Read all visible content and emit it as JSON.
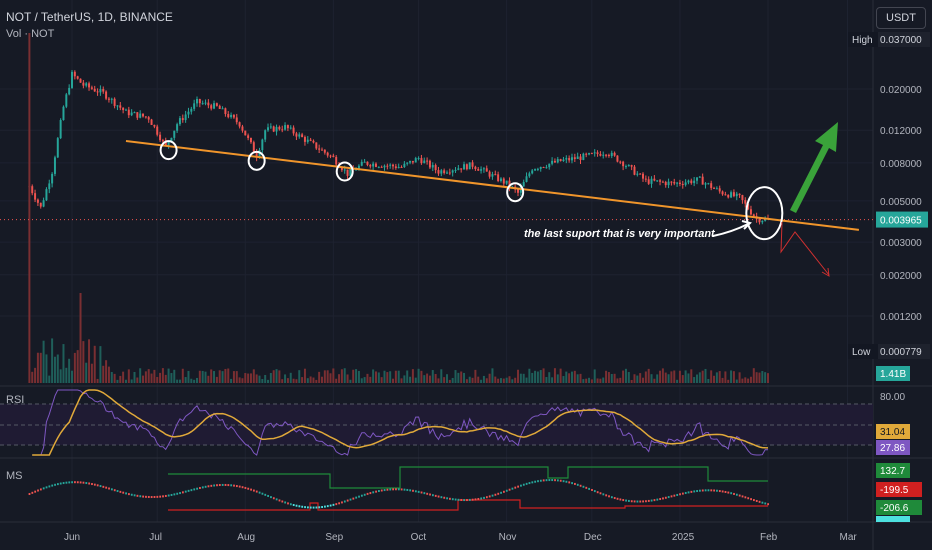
{
  "header": {
    "symbol_line": "NOT / TetherUS, 1D, BINANCE",
    "volume_label": "Vol · NOT",
    "currency_button": "USDT"
  },
  "colors": {
    "background": "#161a25",
    "up": "#26a69a",
    "down": "#ef5350",
    "trendline": "#f0952b",
    "rsi_line": "#7e57c2",
    "rsi_ma": "#e0a93a",
    "arrow_up": "#3aa33a",
    "arrow_down": "#d03030",
    "ms_green": "#1f8a3a",
    "ms_red": "#d02020",
    "ms_cyan": "#4de0e0"
  },
  "chart_data": [
    {
      "type": "candlestick",
      "title": "NOT / TetherUS, 1D, BINANCE",
      "y_scale": "log",
      "y_ticks": [
        "0.020000",
        "0.012000",
        "0.008000",
        "0.005000",
        "0.003000",
        "0.002000",
        "0.001200"
      ],
      "y_tick_values": [
        0.02,
        0.012,
        0.008,
        0.005,
        0.003,
        0.002,
        0.0012
      ],
      "x_ticks": [
        "Jun",
        "Jul",
        "Aug",
        "Sep",
        "Oct",
        "Nov",
        "Dec",
        "2025",
        "Feb",
        "Mar"
      ],
      "high_label": "High",
      "high_value": "0.037000",
      "low_label": "Low",
      "low_value": "0.000779",
      "last_price": "0.003965",
      "volume_badge": "1.41B",
      "annotation": "the last suport that is very important",
      "close_series": [
        {
          "date": "May 17",
          "value": 0.006
        },
        {
          "date": "May 21",
          "value": 0.0046
        },
        {
          "date": "May 25",
          "value": 0.0072
        },
        {
          "date": "May 29",
          "value": 0.016
        },
        {
          "date": "Jun 01",
          "value": 0.024
        },
        {
          "date": "Jun 05",
          "value": 0.021
        },
        {
          "date": "Jun 12",
          "value": 0.019
        },
        {
          "date": "Jun 20",
          "value": 0.015
        },
        {
          "date": "Jun 28",
          "value": 0.014
        },
        {
          "date": "Jul 04",
          "value": 0.0098
        },
        {
          "date": "Jul 08",
          "value": 0.013
        },
        {
          "date": "Jul 15",
          "value": 0.017
        },
        {
          "date": "Jul 22",
          "value": 0.016
        },
        {
          "date": "Jul 30",
          "value": 0.013
        },
        {
          "date": "Aug 05",
          "value": 0.0088
        },
        {
          "date": "Aug 08",
          "value": 0.012
        },
        {
          "date": "Aug 15",
          "value": 0.0125
        },
        {
          "date": "Aug 25",
          "value": 0.01
        },
        {
          "date": "Sep 01",
          "value": 0.0085
        },
        {
          "date": "Sep 06",
          "value": 0.007
        },
        {
          "date": "Sep 12",
          "value": 0.008
        },
        {
          "date": "Sep 25",
          "value": 0.0076
        },
        {
          "date": "Oct 01",
          "value": 0.0085
        },
        {
          "date": "Oct 08",
          "value": 0.0072
        },
        {
          "date": "Oct 20",
          "value": 0.0078
        },
        {
          "date": "Nov 01",
          "value": 0.0062
        },
        {
          "date": "Nov 05",
          "value": 0.0055
        },
        {
          "date": "Nov 10",
          "value": 0.0075
        },
        {
          "date": "Nov 20",
          "value": 0.0082
        },
        {
          "date": "Dec 01",
          "value": 0.0088
        },
        {
          "date": "Dec 06",
          "value": 0.0092
        },
        {
          "date": "Dec 12",
          "value": 0.008
        },
        {
          "date": "Dec 20",
          "value": 0.0064
        },
        {
          "date": "Dec 30",
          "value": 0.0062
        },
        {
          "date": "Jan 08",
          "value": 0.0065
        },
        {
          "date": "Jan 15",
          "value": 0.0056
        },
        {
          "date": "Jan 22",
          "value": 0.0052
        },
        {
          "date": "Jan 28",
          "value": 0.004
        },
        {
          "date": "Feb 01",
          "value": 0.003965
        }
      ]
    },
    {
      "type": "line",
      "title": "RSI",
      "levels": [
        80.0
      ],
      "value_ma": "31.04",
      "value_rsi": "27.86"
    },
    {
      "type": "line",
      "title": "MS",
      "value_green": "132.7",
      "value_red": "-199.5",
      "value_cyan": "-206.6"
    }
  ]
}
